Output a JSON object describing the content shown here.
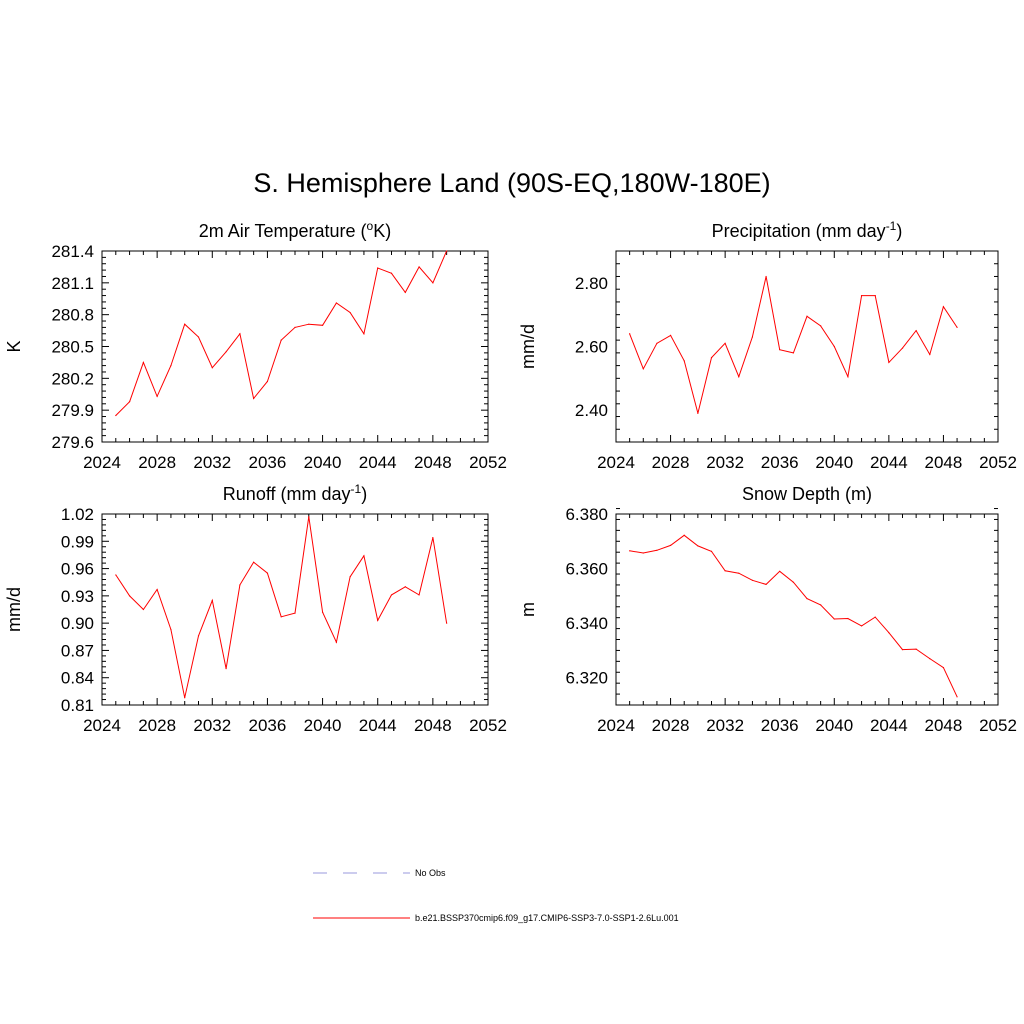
{
  "title": "S. Hemisphere Land (90S-EQ,180W-180E)",
  "colors": {
    "model": "#ff0000",
    "obs": "#9999dd",
    "axis": "#000000"
  },
  "legend": {
    "obs_label": "No Obs",
    "model_label": "b.e21.BSSP370cmip6.f09_g17.CMIP6-SSP3-7.0-SSP1-2.6Lu.001"
  },
  "chart_data": [
    {
      "type": "line",
      "title": "2m Air Temperature (°K)",
      "title_base": "2m Air Temperature (",
      "title_sup": "o",
      "title_after": "K)",
      "ylabel": "K",
      "xlim": [
        2024,
        2052
      ],
      "ylim": [
        279.6,
        281.4
      ],
      "xticks": [
        "2024",
        "2028",
        "2032",
        "2036",
        "2040",
        "2044",
        "2048",
        "2052"
      ],
      "yticks": [
        "279.6",
        "279.9",
        "280.2",
        "280.5",
        "280.8",
        "281.1",
        "281.4"
      ],
      "grid": false,
      "x": [
        2025,
        2026,
        2027,
        2028,
        2029,
        2030,
        2031,
        2032,
        2033,
        2034,
        2035,
        2036,
        2037,
        2038,
        2039,
        2040,
        2041,
        2042,
        2043,
        2044,
        2045,
        2046,
        2047,
        2048,
        2049
      ],
      "values": [
        279.85,
        279.98,
        280.35,
        280.03,
        280.32,
        280.71,
        280.59,
        280.3,
        280.45,
        280.62,
        280.01,
        280.17,
        280.56,
        280.68,
        280.71,
        280.7,
        280.91,
        280.82,
        280.62,
        281.24,
        281.19,
        281.01,
        281.25,
        281.1,
        281.4
      ]
    },
    {
      "type": "line",
      "title": "Precipitation (mm day-1)",
      "title_base": "Precipitation (mm day",
      "title_sup": "-1",
      "title_after": ")",
      "ylabel": "mm/d",
      "xlim": [
        2024,
        2052
      ],
      "ylim": [
        2.3,
        2.9
      ],
      "xticks": [
        "2024",
        "2028",
        "2032",
        "2036",
        "2040",
        "2044",
        "2048",
        "2052"
      ],
      "yticks": [
        "2.40",
        "2.60",
        "2.80"
      ],
      "grid": false,
      "x": [
        2025,
        2026,
        2027,
        2028,
        2029,
        2030,
        2031,
        2032,
        2033,
        2034,
        2035,
        2036,
        2037,
        2038,
        2039,
        2040,
        2041,
        2042,
        2043,
        2044,
        2045,
        2046,
        2047,
        2048,
        2049
      ],
      "values": [
        2.64,
        2.53,
        2.61,
        2.635,
        2.555,
        2.39,
        2.565,
        2.61,
        2.505,
        2.63,
        2.82,
        2.59,
        2.58,
        2.695,
        2.665,
        2.6,
        2.505,
        2.76,
        2.76,
        2.55,
        2.595,
        2.65,
        2.575,
        2.725,
        2.66
      ]
    },
    {
      "type": "line",
      "title": "Runoff (mm day-1)",
      "title_base": "Runoff (mm day",
      "title_sup": "-1",
      "title_after": ")",
      "ylabel": "mm/d",
      "xlim": [
        2024,
        2052
      ],
      "ylim": [
        0.81,
        1.02
      ],
      "xticks": [
        "2024",
        "2028",
        "2032",
        "2036",
        "2040",
        "2044",
        "2048",
        "2052"
      ],
      "yticks": [
        "0.81",
        "0.84",
        "0.87",
        "0.90",
        "0.93",
        "0.96",
        "0.99",
        "1.02"
      ],
      "grid": false,
      "x": [
        2025,
        2026,
        2027,
        2028,
        2029,
        2030,
        2031,
        2032,
        2033,
        2034,
        2035,
        2036,
        2037,
        2038,
        2039,
        2040,
        2041,
        2042,
        2043,
        2044,
        2045,
        2046,
        2047,
        2048,
        2049
      ],
      "values": [
        0.953,
        0.93,
        0.915,
        0.937,
        0.893,
        0.818,
        0.886,
        0.925,
        0.85,
        0.942,
        0.967,
        0.955,
        0.907,
        0.911,
        1.017,
        0.912,
        0.879,
        0.951,
        0.974,
        0.903,
        0.931,
        0.94,
        0.931,
        0.994,
        0.9
      ]
    },
    {
      "type": "line",
      "title": "Snow Depth (m)",
      "title_base": "Snow Depth (m)",
      "title_sup": "",
      "title_after": "",
      "ylabel": "m",
      "xlim": [
        2024,
        2052
      ],
      "ylim": [
        6.31,
        6.38
      ],
      "xticks": [
        "2024",
        "2028",
        "2032",
        "2036",
        "2040",
        "2044",
        "2048",
        "2052"
      ],
      "yticks": [
        "6.320",
        "6.340",
        "6.360",
        "6.380"
      ],
      "grid": false,
      "x": [
        2025,
        2026,
        2027,
        2028,
        2029,
        2030,
        2031,
        2032,
        2033,
        2034,
        2035,
        2036,
        2037,
        2038,
        2039,
        2040,
        2041,
        2042,
        2043,
        2044,
        2045,
        2046,
        2047,
        2048,
        2049
      ],
      "values": [
        6.3665,
        6.3657,
        6.3667,
        6.3685,
        6.3722,
        6.3683,
        6.3663,
        6.3592,
        6.3583,
        6.3557,
        6.3542,
        6.359,
        6.355,
        6.349,
        6.3467,
        6.3415,
        6.3417,
        6.339,
        6.3422,
        6.3365,
        6.3303,
        6.3305,
        6.327,
        6.3237,
        6.313
      ]
    }
  ]
}
